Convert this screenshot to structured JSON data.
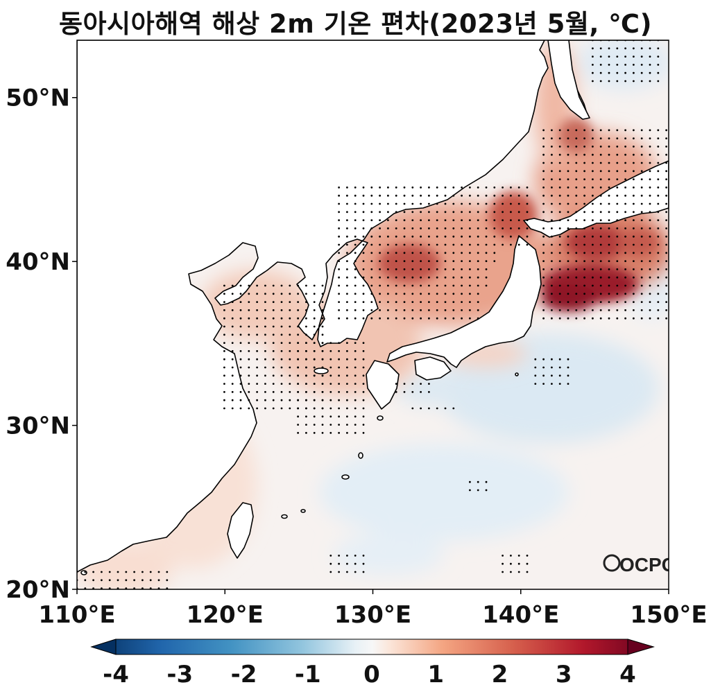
{
  "title": "동아시아해역 해상 2m 기온 편차(2023년 5월, ℃)",
  "map": {
    "lon_ticks": [
      "110°E",
      "120°E",
      "130°E",
      "140°E",
      "150°E"
    ],
    "lat_ticks": [
      "50°N",
      "40°N",
      "30°N",
      "20°N"
    ],
    "lon_range": [
      110,
      150
    ],
    "lat_range": [
      20,
      53.5
    ],
    "logo": "OCPC"
  },
  "colorbar": {
    "ticks": [
      "-4",
      "-3",
      "-2",
      "-1",
      "0",
      "1",
      "2",
      "3",
      "4"
    ],
    "range": [
      -4,
      4
    ],
    "colormap": "RdBu_r",
    "extend": "both"
  },
  "colors": {
    "land": "#ffffff",
    "coast": "#000000",
    "strong_warm": "#8a0b20",
    "warm": "#d6604d",
    "mild_warm": "#f4a582",
    "neutral": "#f7f7f7",
    "cool": "#d1e5f0"
  }
}
